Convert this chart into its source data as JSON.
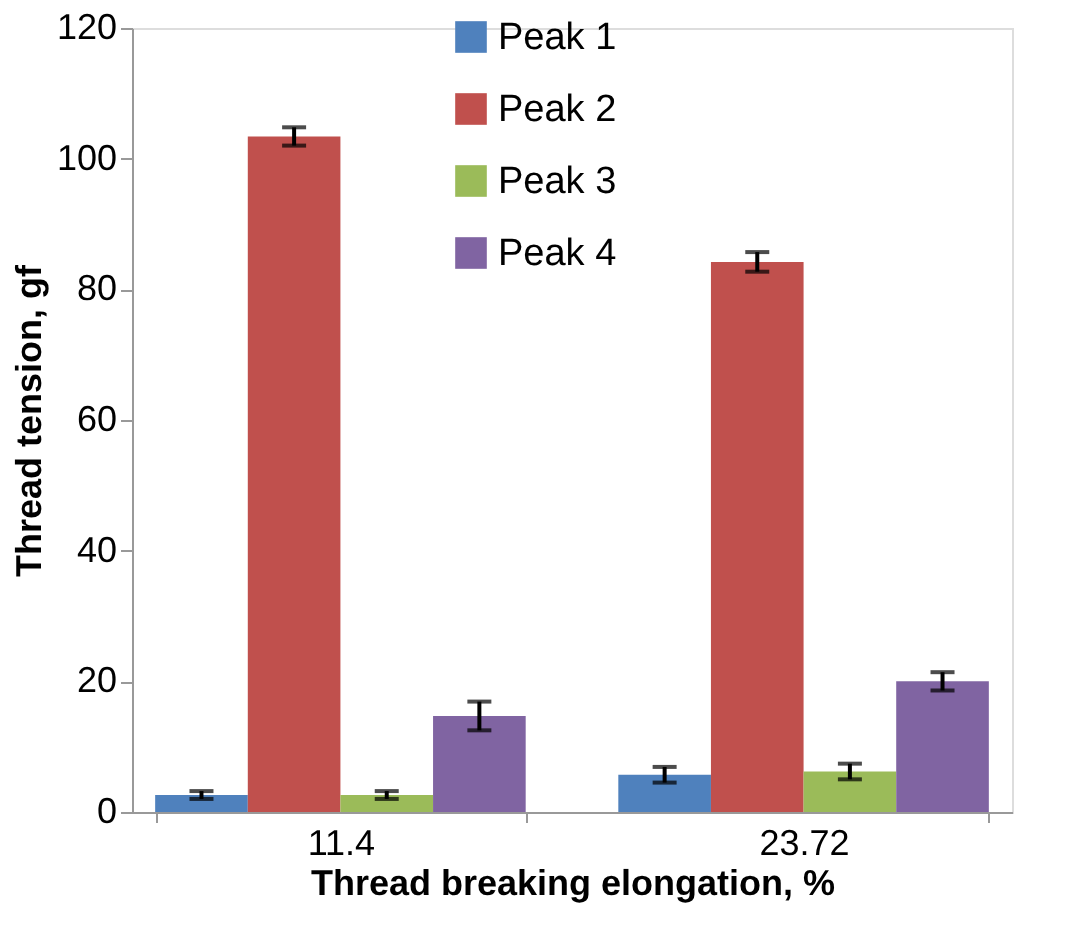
{
  "chart_data": {
    "type": "bar",
    "xlabel": "Thread breaking elongation, %",
    "ylabel": "Thread tension, gf",
    "categories": [
      "11.4",
      "23.72"
    ],
    "series": [
      {
        "name": "Peak 1",
        "color": "#4f81bd",
        "values": [
          2.6,
          5.7
        ],
        "errors": [
          0.6,
          1.2
        ]
      },
      {
        "name": "Peak 2",
        "color": "#c0504d",
        "values": [
          103.4,
          84.2
        ],
        "errors": [
          1.4,
          1.5
        ]
      },
      {
        "name": "Peak 3",
        "color": "#9bbb59",
        "values": [
          2.6,
          6.2
        ],
        "errors": [
          0.6,
          1.2
        ]
      },
      {
        "name": "Peak 4",
        "color": "#8064a2",
        "values": [
          14.7,
          20.0
        ],
        "errors": [
          2.2,
          1.4
        ]
      }
    ],
    "ylim": [
      0,
      120
    ],
    "yticks": [
      0,
      20,
      40,
      60,
      80,
      100,
      120
    ],
    "grid": false,
    "legend": "top"
  }
}
